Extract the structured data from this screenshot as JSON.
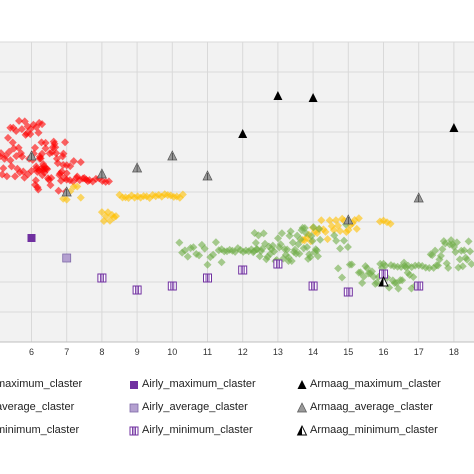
{
  "chart_data": {
    "type": "scatter",
    "title": "",
    "xlabel": "",
    "ylabel": "",
    "xlim": [
      5.1,
      18.5
    ],
    "ylim": [
      0,
      15
    ],
    "x_ticks": [
      "6",
      "7",
      "8",
      "9",
      "10",
      "11",
      "12",
      "13",
      "14",
      "15",
      "16",
      "17",
      "18"
    ],
    "grid": true,
    "legend_position": "bottom",
    "series": [
      {
        "name": "maximum_claster",
        "color": "#ff0000",
        "marker": "diamond",
        "clusters": [
          {
            "x_from": 5.1,
            "x_to": 6.4,
            "y_center": 9.3,
            "y_spread": 1.2,
            "n": 40
          },
          {
            "x_from": 5.4,
            "x_to": 6.3,
            "y_center": 10.8,
            "y_spread": 0.3,
            "n": 12
          },
          {
            "x_from": 6.1,
            "x_to": 7.0,
            "y_center": 8.8,
            "y_spread": 1.3,
            "n": 40
          },
          {
            "x_from": 7.0,
            "x_to": 8.2,
            "y_center": 8.1,
            "y_spread": 0.1,
            "n": 14
          },
          {
            "x_from": 6.9,
            "x_to": 7.6,
            "y_center": 8.6,
            "y_spread": 0.6,
            "n": 8
          }
        ]
      },
      {
        "name": "average_claster",
        "color": "#ffc000",
        "marker": "diamond",
        "clusters": [
          {
            "x_from": 6.9,
            "x_to": 7.4,
            "y_center": 7.5,
            "y_spread": 0.4,
            "n": 6
          },
          {
            "x_from": 8.0,
            "x_to": 8.4,
            "y_center": 6.5,
            "y_spread": 0.5,
            "n": 8
          },
          {
            "x_from": 8.5,
            "x_to": 10.3,
            "y_center": 7.3,
            "y_spread": 0.1,
            "n": 22
          },
          {
            "x_from": 13.7,
            "x_to": 15.3,
            "y_center": 5.6,
            "y_spread": 0.6,
            "n": 28
          },
          {
            "x_from": 15.9,
            "x_to": 16.2,
            "y_center": 6.0,
            "y_spread": 0.1,
            "n": 4
          }
        ]
      },
      {
        "name": "minimum_claster",
        "color": "#70ad47",
        "marker": "diamond",
        "clusters": [
          {
            "x_from": 10.2,
            "x_to": 11.4,
            "y_center": 4.4,
            "y_spread": 0.6,
            "n": 16
          },
          {
            "x_from": 11.4,
            "x_to": 12.4,
            "y_center": 4.6,
            "y_spread": 0.1,
            "n": 14
          },
          {
            "x_from": 12.3,
            "x_to": 13.3,
            "y_center": 4.8,
            "y_spread": 0.8,
            "n": 28
          },
          {
            "x_from": 13.3,
            "x_to": 14.2,
            "y_center": 4.9,
            "y_spread": 0.9,
            "n": 30
          },
          {
            "x_from": 14.6,
            "x_to": 15.1,
            "y_center": 4.4,
            "y_spread": 1.6,
            "n": 10
          },
          {
            "x_from": 15.3,
            "x_to": 16.0,
            "y_center": 3.4,
            "y_spread": 0.6,
            "n": 16
          },
          {
            "x_from": 16.0,
            "x_to": 16.9,
            "y_center": 3.3,
            "y_spread": 0.7,
            "n": 18
          },
          {
            "x_from": 16.3,
            "x_to": 17.2,
            "y_center": 3.8,
            "y_spread": 0.1,
            "n": 10
          },
          {
            "x_from": 17.3,
            "x_to": 18.5,
            "y_center": 4.4,
            "y_spread": 0.7,
            "n": 30
          }
        ]
      },
      {
        "name": "Airly_maximum_claster",
        "color": "#7030a0",
        "marker": "square",
        "points": [
          [
            6.0,
            5.2
          ]
        ]
      },
      {
        "name": "Airly_average_claster",
        "color": "#b4a0d0",
        "marker": "square-outline",
        "points": [
          [
            7.0,
            4.2
          ]
        ]
      },
      {
        "name": "Airly_minimum_claster",
        "color": "#7030a0",
        "marker": "square-striped",
        "points": [
          [
            8.0,
            3.2
          ],
          [
            9.0,
            2.6
          ],
          [
            10.0,
            2.8
          ],
          [
            11.0,
            3.2
          ],
          [
            12.0,
            3.6
          ],
          [
            13.0,
            3.9
          ],
          [
            14.0,
            2.8
          ],
          [
            15.0,
            2.5
          ],
          [
            16.0,
            3.4
          ],
          [
            17.0,
            2.8
          ]
        ]
      },
      {
        "name": "Armaag_maximum_claster",
        "color": "#000000",
        "marker": "triangle",
        "points": [
          [
            12.0,
            10.4
          ],
          [
            13.0,
            12.3
          ],
          [
            14.0,
            12.2
          ],
          [
            18.0,
            10.7
          ]
        ]
      },
      {
        "name": "Armaag_average_claster",
        "color": "#707070",
        "marker": "triangle-gray",
        "points": [
          [
            6.0,
            9.3
          ],
          [
            7.0,
            7.5
          ],
          [
            8.0,
            8.4
          ],
          [
            9.0,
            8.7
          ],
          [
            10.0,
            9.3
          ],
          [
            11.0,
            8.3
          ],
          [
            15.0,
            6.1
          ],
          [
            17.0,
            7.2
          ]
        ]
      },
      {
        "name": "Armaag_minimum_claster",
        "color": "#000000",
        "marker": "triangle-half",
        "points": [
          [
            16.0,
            3.0
          ]
        ]
      }
    ]
  },
  "legend": {
    "labels": [
      "maximum_claster",
      "Airly_maximum_claster",
      "Armaag_maximum_claster",
      "average_claster",
      "Airly_average_claster",
      "Armaag_average_claster",
      "minimum_claster",
      "Airly_minimum_claster",
      "Armaag_minimum_claster"
    ]
  }
}
